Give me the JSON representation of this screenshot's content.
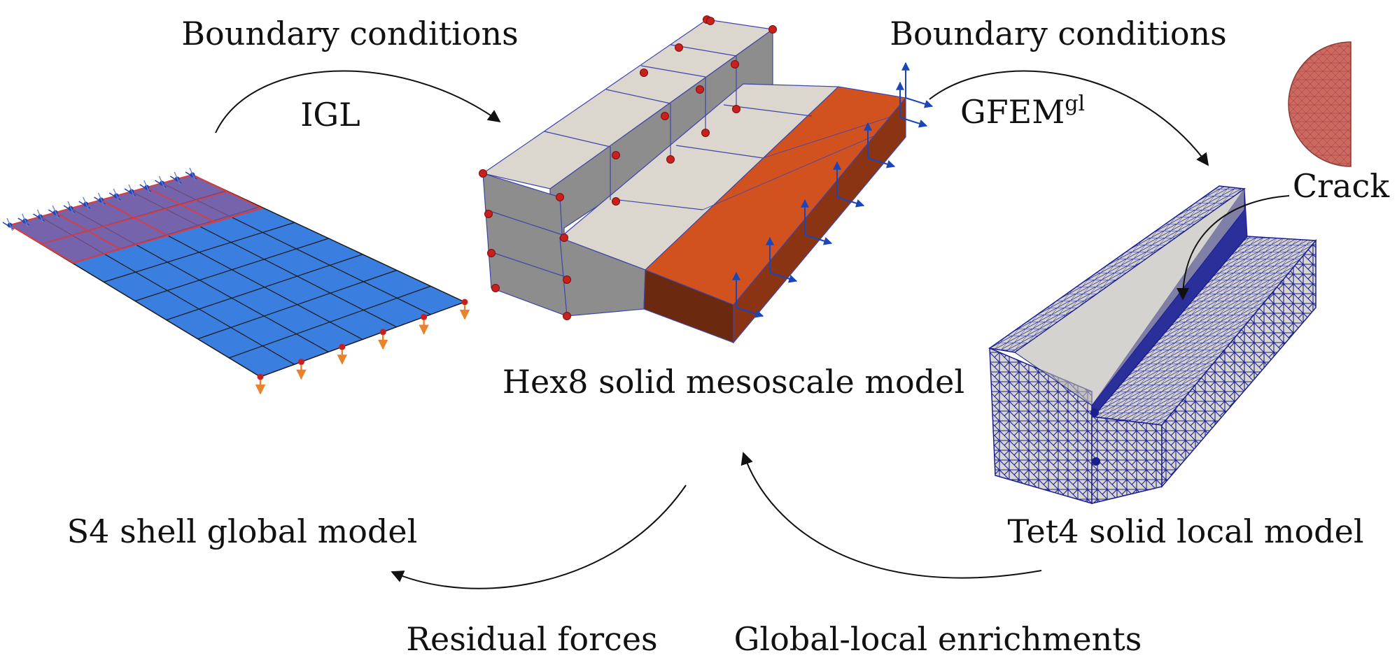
{
  "labels": {
    "bc_left": "Boundary conditions",
    "igl": "IGL",
    "bc_right": "Boundary conditions",
    "gfem": "GFEM",
    "gfem_sup": "gl",
    "crack": "Crack",
    "hex8": "Hex8 solid mesoscale model",
    "s4": "S4 shell global model",
    "tet4": "Tet4 solid local model",
    "residual": "Residual forces",
    "enrich": "Global-local enrichments"
  },
  "colors": {
    "shell_blue": "#3a7fe0",
    "shell_overlay": "#8a5a9a",
    "shell_red": "#e03a3a",
    "hex_gray_top": "#dcd7ce",
    "hex_gray_side": "#8d8d8d",
    "hex_orange": "#d2521f",
    "hex_orange_dark": "#6b2a10",
    "node_red": "#c8201c",
    "bc_blue": "#1c46b8",
    "load_orange": "#e8822c",
    "tet_mesh": "#1a1f8f",
    "crack_disk": "#cd6b63"
  }
}
